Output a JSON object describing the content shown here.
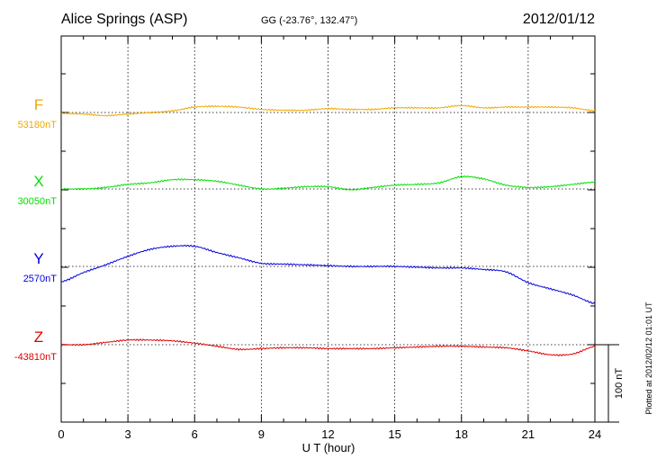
{
  "header": {
    "station": "Alice Springs (ASP)",
    "coords": "GG (-23.76°, 132.47°)",
    "date": "2012/01/12"
  },
  "footer": {
    "plotted_note": "Plotted at 2012/02/12 01:01 UT",
    "scale_label": "100 nT"
  },
  "chart_data": {
    "type": "line",
    "xlabel": "U T (hour)",
    "xlim": [
      0,
      24
    ],
    "xticks": [
      0,
      3,
      6,
      9,
      12,
      15,
      18,
      21,
      24
    ],
    "scale_bar_nT": 100,
    "grid": true,
    "series": [
      {
        "name": "F",
        "baseline_label": "53180nT",
        "baseline": 53180,
        "color": "#f0a800",
        "x": [
          0,
          1,
          2,
          3,
          4,
          5,
          6,
          7,
          8,
          9,
          10,
          11,
          12,
          13,
          14,
          15,
          16,
          17,
          18,
          19,
          20,
          21,
          22,
          23,
          24
        ],
        "values": [
          53179,
          53178,
          53176,
          53178,
          53180,
          53182,
          53187,
          53188,
          53187,
          53184,
          53183,
          53183,
          53185,
          53184,
          53184,
          53186,
          53186,
          53186,
          53189,
          53186,
          53187,
          53187,
          53187,
          53186,
          53182
        ]
      },
      {
        "name": "X",
        "baseline_label": "30050nT",
        "baseline": 30050,
        "color": "#00e000",
        "x": [
          0,
          1,
          2,
          3,
          4,
          5,
          6,
          7,
          8,
          9,
          10,
          11,
          12,
          13,
          14,
          15,
          16,
          17,
          18,
          19,
          20,
          21,
          22,
          23,
          24
        ],
        "values": [
          30050,
          30050,
          30052,
          30056,
          30058,
          30062,
          30062,
          30060,
          30055,
          30050,
          30051,
          30053,
          30053,
          30049,
          30052,
          30055,
          30056,
          30058,
          30066,
          30063,
          30055,
          30052,
          30053,
          30056,
          30059
        ]
      },
      {
        "name": "Y",
        "baseline_label": "2570nT",
        "baseline": 2570,
        "color": "#0000e0",
        "x": [
          0,
          1,
          2,
          3,
          4,
          5,
          6,
          7,
          8,
          9,
          10,
          11,
          12,
          13,
          14,
          15,
          16,
          17,
          18,
          19,
          20,
          21,
          22,
          23,
          24
        ],
        "values": [
          2550,
          2562,
          2572,
          2583,
          2592,
          2596,
          2596,
          2588,
          2581,
          2574,
          2573,
          2572,
          2571,
          2570,
          2570,
          2570,
          2569,
          2568,
          2568,
          2566,
          2563,
          2549,
          2541,
          2533,
          2522
        ]
      },
      {
        "name": "Z",
        "baseline_label": "-43810nT",
        "baseline": -43810,
        "color": "#e00000",
        "x": [
          0,
          1,
          2,
          3,
          4,
          5,
          6,
          7,
          8,
          9,
          10,
          11,
          12,
          13,
          14,
          15,
          16,
          17,
          18,
          19,
          20,
          21,
          22,
          23,
          24
        ],
        "values": [
          -43810,
          -43810,
          -43807,
          -43804,
          -43804,
          -43805,
          -43808,
          -43812,
          -43816,
          -43815,
          -43814,
          -43814,
          -43815,
          -43815,
          -43815,
          -43814,
          -43813,
          -43812,
          -43812,
          -43813,
          -43814,
          -43818,
          -43823,
          -43822,
          -43812
        ]
      }
    ]
  }
}
